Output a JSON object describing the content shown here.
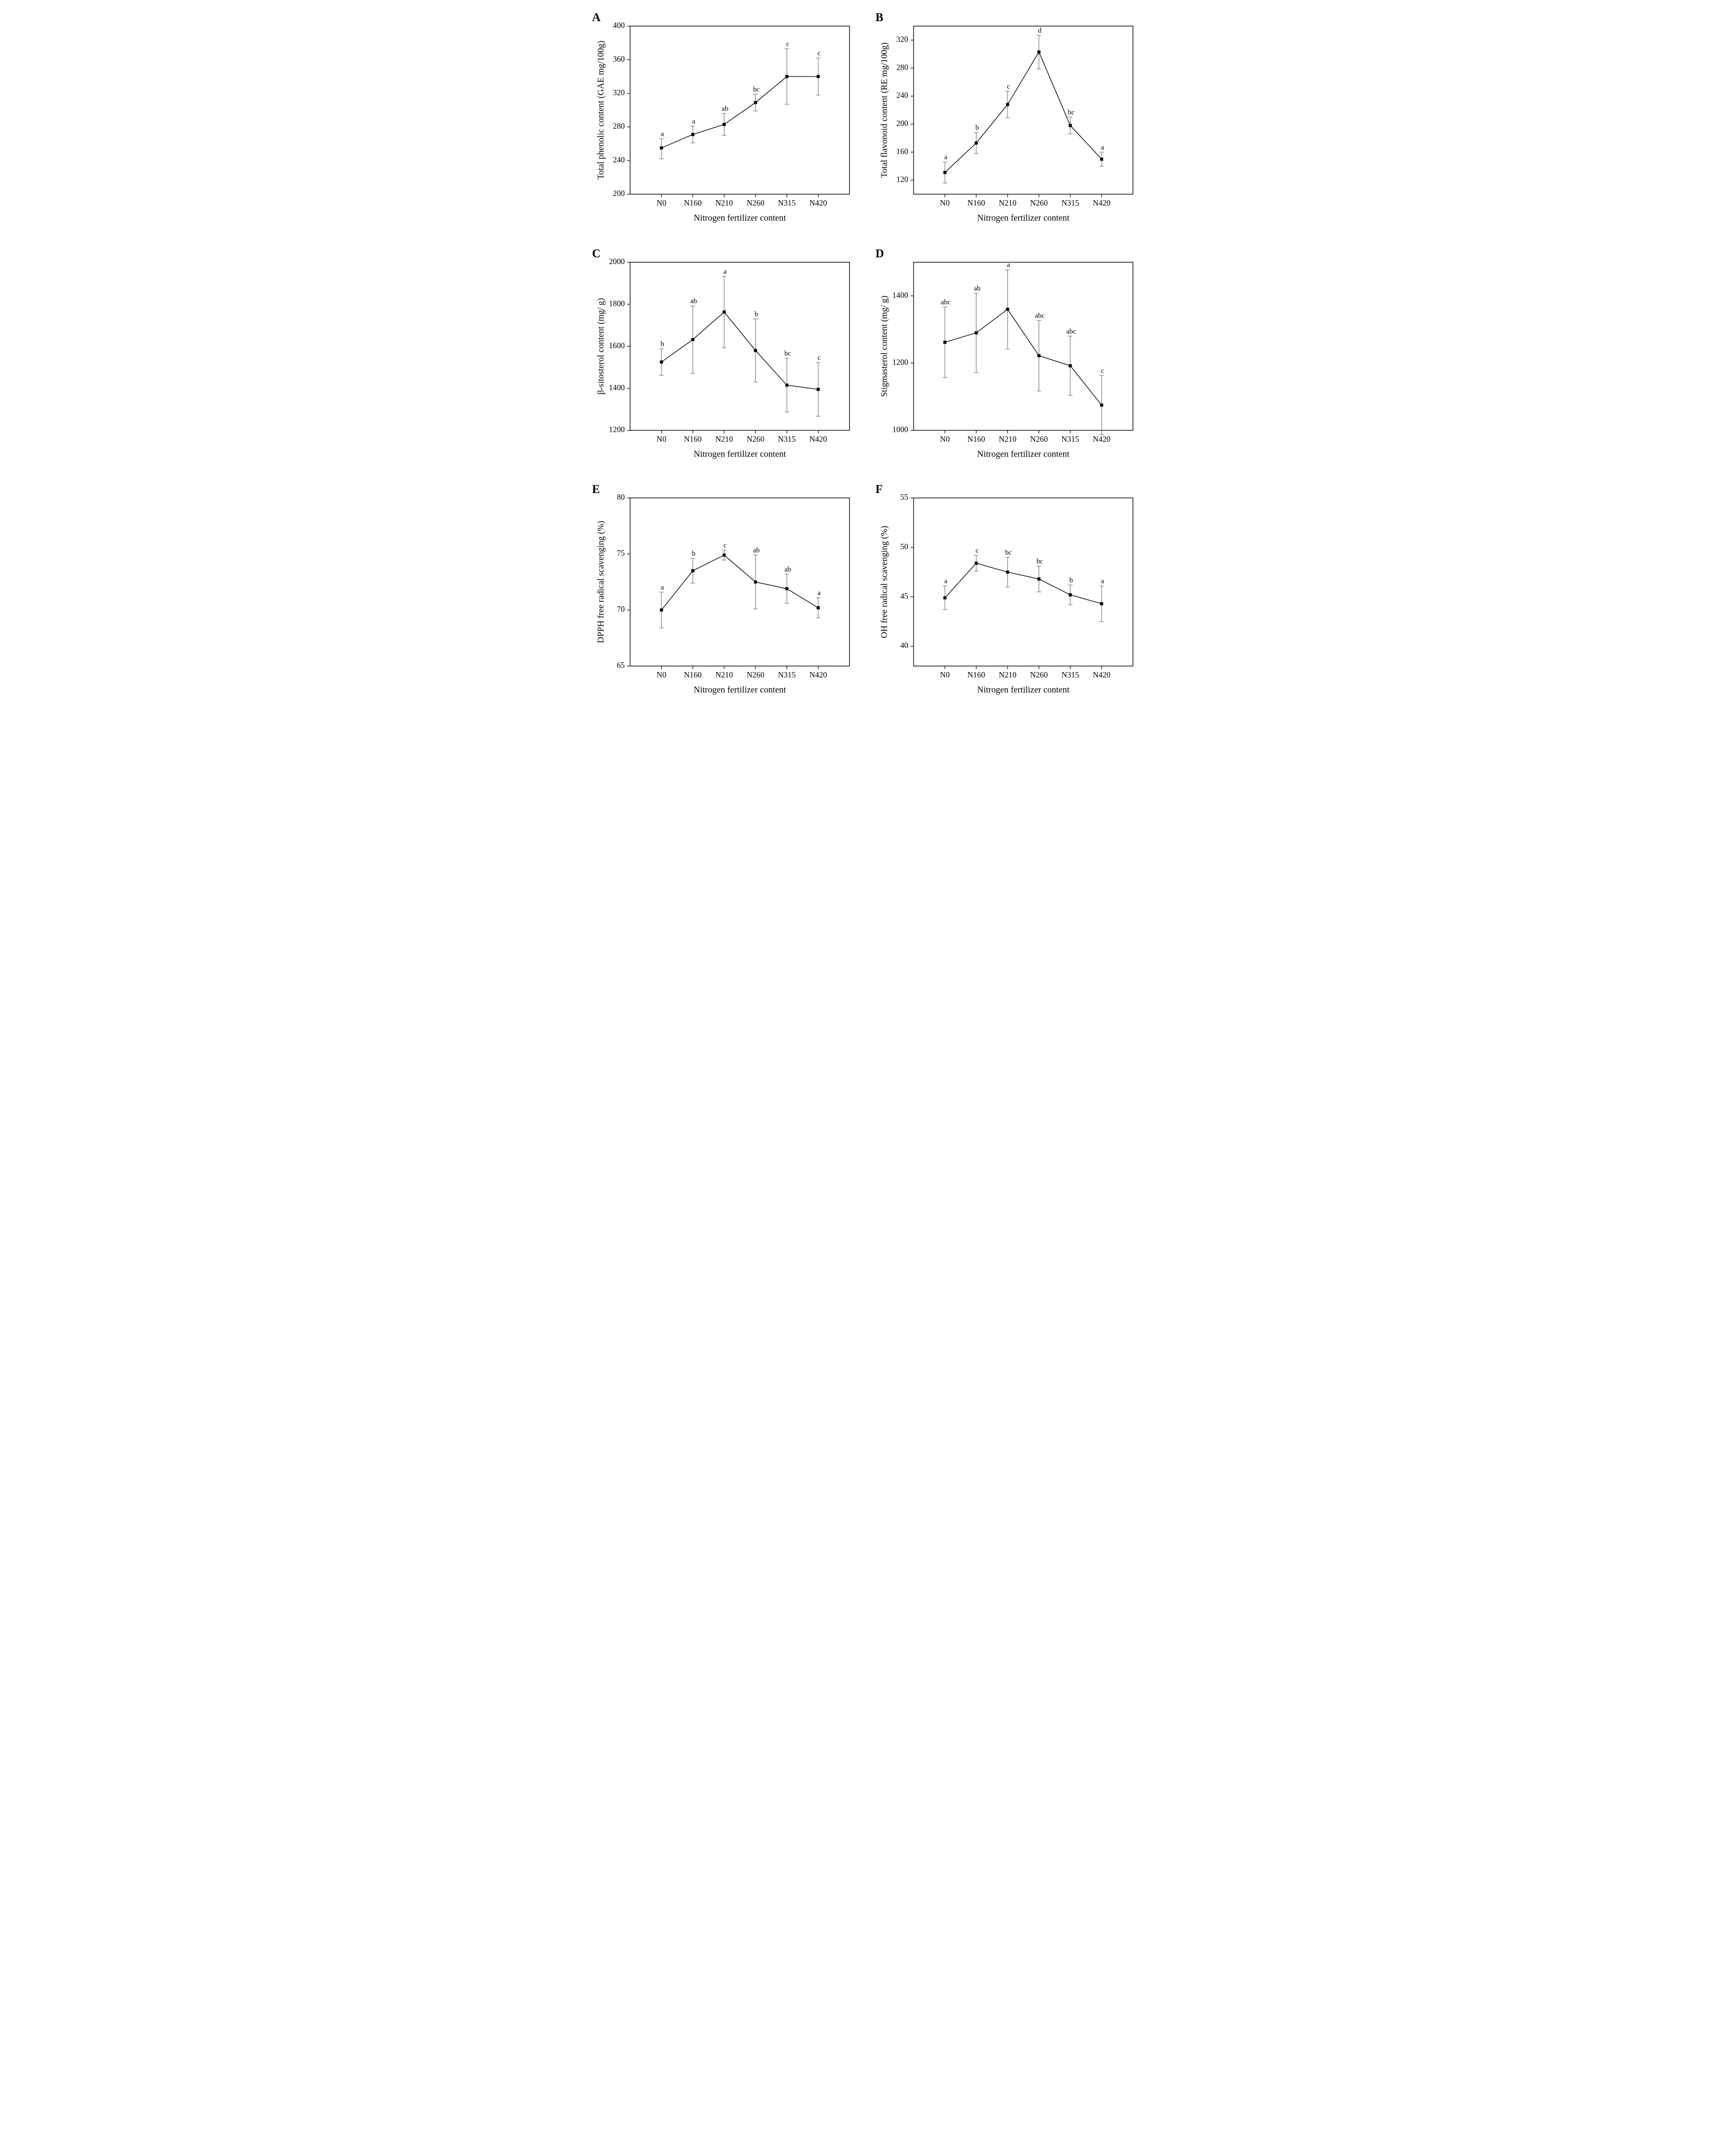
{
  "global": {
    "x_categories": [
      "N0",
      "N160",
      "N210",
      "N260",
      "N315",
      "N420"
    ],
    "xlabel": "Nitrogen fertilizer content",
    "colors": {
      "line": "#000000",
      "marker_fill": "#000000",
      "marker_edge": "#000000",
      "errorbar": "#808080",
      "axis": "#000000",
      "background": "#ffffff",
      "tick": "#000000",
      "text": "#000000"
    },
    "line_width": 1.5,
    "marker_size": 6,
    "marker_shape": "square",
    "error_cap_width": 10,
    "error_line_width": 1.4,
    "label_fontsize": 20,
    "tick_fontsize": 18,
    "pointlabel_fontsize": 16,
    "panel_letter_fontsize": 26,
    "layout": {
      "cols": 2,
      "rows": 3
    }
  },
  "panels": [
    {
      "id": "A",
      "letter": "A",
      "ylabel": "Total phenolic content (GAE mg/100g)",
      "ylim": [
        200,
        400
      ],
      "yticks": [
        200,
        240,
        280,
        320,
        360,
        400
      ],
      "values": [
        255,
        271,
        283,
        309,
        340,
        340
      ],
      "errors_plus": [
        11,
        10,
        13,
        10,
        33,
        22
      ],
      "errors_minus": [
        13,
        10,
        13,
        10,
        33,
        22
      ],
      "labels": [
        "a",
        "a",
        "ab",
        "bc",
        "c",
        "c"
      ]
    },
    {
      "id": "B",
      "letter": "B",
      "ylabel": "Total flavonoid content (RE mg/100g)",
      "ylim": [
        100,
        340
      ],
      "yticks": [
        120,
        160,
        200,
        240,
        280,
        320
      ],
      "values": [
        131,
        173,
        228,
        303,
        198,
        150
      ],
      "errors_plus": [
        15,
        15,
        19,
        24,
        12,
        10
      ],
      "errors_minus": [
        15,
        15,
        19,
        24,
        12,
        10
      ],
      "labels": [
        "a",
        "b",
        "c",
        "d",
        "bc",
        "a"
      ]
    },
    {
      "id": "C",
      "letter": "C",
      "ylabel": "β-sitosterol  content (mg/ g)",
      "ylim": [
        1200,
        2000
      ],
      "yticks": [
        1200,
        1400,
        1600,
        1800,
        2000
      ],
      "values": [
        1525,
        1632,
        1763,
        1580,
        1415,
        1395
      ],
      "errors_plus": [
        63,
        160,
        170,
        150,
        128,
        128
      ],
      "errors_minus": [
        63,
        160,
        170,
        150,
        128,
        128
      ],
      "labels": [
        "b",
        "ab",
        "a",
        "b",
        "bc",
        "c"
      ]
    },
    {
      "id": "D",
      "letter": "D",
      "ylabel": "Stigmasterol content (mg/ g)",
      "ylim": [
        1000,
        1500
      ],
      "yticks": [
        1000,
        1200,
        1400
      ],
      "values": [
        1262,
        1290,
        1360,
        1222,
        1192,
        1075
      ],
      "errors_plus": [
        105,
        118,
        118,
        105,
        88,
        88
      ],
      "errors_minus": [
        105,
        118,
        118,
        105,
        88,
        88
      ],
      "labels": [
        "abc",
        "ab",
        "a",
        "abc",
        "abc",
        "c"
      ]
    },
    {
      "id": "E",
      "letter": "E",
      "ylabel": "DPPH free radical scavenging (%)",
      "ylim": [
        65,
        80
      ],
      "yticks": [
        65,
        70,
        75,
        80
      ],
      "values": [
        70.0,
        73.5,
        74.9,
        72.5,
        71.9,
        70.2
      ],
      "errors_plus": [
        1.6,
        1.1,
        0.45,
        2.4,
        1.3,
        0.9
      ],
      "errors_minus": [
        1.6,
        1.1,
        0.45,
        2.4,
        1.3,
        0.9
      ],
      "labels": [
        "a",
        "b",
        "c",
        "ab",
        "ab",
        "a"
      ]
    },
    {
      "id": "F",
      "letter": "F",
      "ylabel": "OH free radical scavenging (%)",
      "ylim": [
        38,
        55
      ],
      "yticks": [
        40,
        45,
        50,
        55
      ],
      "values": [
        44.9,
        48.4,
        47.5,
        46.8,
        45.2,
        44.3
      ],
      "errors_plus": [
        1.2,
        0.8,
        1.5,
        1.3,
        1.0,
        1.8
      ],
      "errors_minus": [
        1.2,
        0.8,
        1.5,
        1.3,
        1.0,
        1.8
      ],
      "labels": [
        "a",
        "c",
        "bc",
        "bc",
        "b",
        "a"
      ]
    }
  ]
}
